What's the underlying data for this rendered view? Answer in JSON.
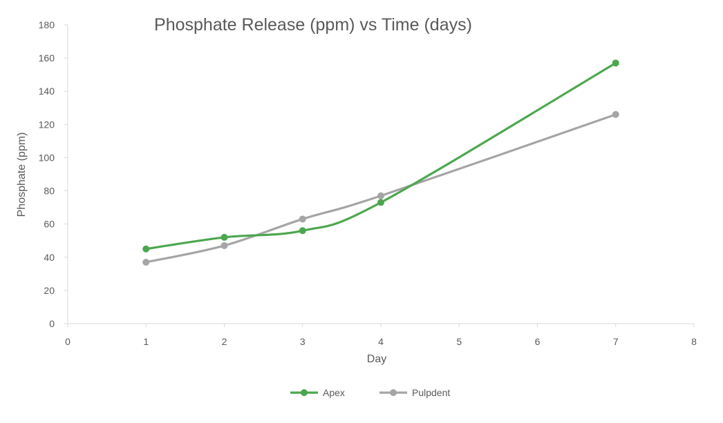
{
  "chart_data": {
    "type": "scatter",
    "mode": "smooth-lines-with-markers",
    "title": "Phosphate Release (ppm) vs Time (days)",
    "xlabel": "Day",
    "ylabel": "Phosphate (ppm)",
    "xlim": [
      0,
      8
    ],
    "ylim": [
      0,
      180
    ],
    "x_ticks": [
      "0",
      "1",
      "2",
      "3",
      "4",
      "5",
      "6",
      "7",
      "8"
    ],
    "y_ticks": [
      "0",
      "20",
      "40",
      "60",
      "80",
      "100",
      "120",
      "140",
      "160",
      "180"
    ],
    "grid": false,
    "legend_position": "bottom",
    "series": [
      {
        "name": "Apex",
        "color": "#4CA64F",
        "x": [
          1,
          2,
          3,
          4,
          7
        ],
        "y": [
          45,
          52,
          56,
          73,
          157
        ]
      },
      {
        "name": "Pulpdent",
        "color": "#A5A5A5",
        "x": [
          1,
          2,
          3,
          4,
          7
        ],
        "y": [
          37,
          47,
          63,
          77,
          126
        ]
      }
    ]
  }
}
